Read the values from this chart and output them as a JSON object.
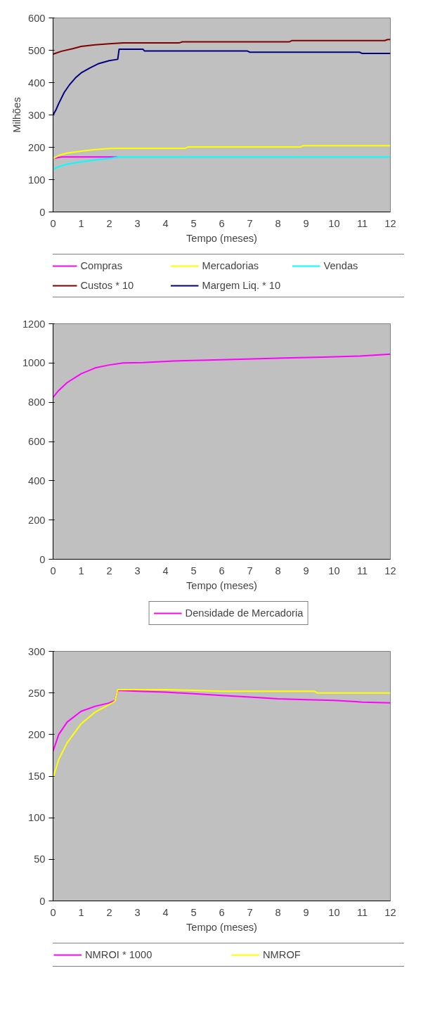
{
  "chart_data": [
    {
      "type": "line",
      "ylabel": "Milhões",
      "xlabel": "Tempo (meses)",
      "xlim": [
        0,
        12
      ],
      "xticks": [
        0,
        1,
        2,
        3,
        4,
        5,
        6,
        7,
        8,
        9,
        10,
        11,
        12
      ],
      "ylim": [
        0,
        600
      ],
      "yticks": [
        0,
        100,
        200,
        300,
        400,
        500,
        600
      ],
      "grid": false,
      "legend": "bottom",
      "marker": "none",
      "line_style": "solid",
      "series": [
        {
          "name": "Compras",
          "color": "#ff00ff",
          "x": [
            0,
            0.3,
            1,
            2.3
          ],
          "values": [
            165,
            170,
            170,
            170
          ]
        },
        {
          "name": "Mercadorias",
          "color": "#ffff00",
          "x": [
            0,
            0.2,
            0.5,
            1,
            1.5,
            2,
            2.3,
            4.7,
            4.8,
            8.8,
            8.9,
            12
          ],
          "values": [
            165,
            175,
            182,
            188,
            193,
            196,
            197,
            197,
            201,
            201,
            205,
            205
          ]
        },
        {
          "name": "Vendas",
          "color": "#00ffff",
          "x": [
            0,
            0.2,
            0.5,
            1,
            1.5,
            2,
            2.3,
            12
          ],
          "values": [
            132,
            140,
            148,
            155,
            161,
            165,
            170,
            170
          ]
        },
        {
          "name": "Custos * 10",
          "color": "#800000",
          "x": [
            0,
            0.3,
            0.7,
            1,
            1.5,
            2,
            2.5,
            4.5,
            4.6,
            8.4,
            8.5,
            11.8,
            11.9,
            12
          ],
          "values": [
            488,
            497,
            505,
            512,
            517,
            520,
            523,
            523,
            526,
            526,
            530,
            530,
            533,
            533
          ]
        },
        {
          "name": "Margem Liq. * 10",
          "color": "#000080",
          "x": [
            0,
            0.1,
            0.2,
            0.4,
            0.6,
            0.8,
            1,
            1.3,
            1.6,
            2,
            2.3,
            2.35,
            3.2,
            3.25,
            6.9,
            7,
            10.9,
            11,
            12
          ],
          "values": [
            300,
            315,
            335,
            370,
            395,
            415,
            430,
            445,
            458,
            468,
            472,
            503,
            503,
            498,
            498,
            494,
            494,
            490,
            490
          ]
        }
      ]
    },
    {
      "type": "line",
      "xlabel": "Tempo (meses)",
      "xlim": [
        0,
        12
      ],
      "xticks": [
        0,
        1,
        2,
        3,
        4,
        5,
        6,
        7,
        8,
        9,
        10,
        11,
        12
      ],
      "ylim": [
        0,
        1200
      ],
      "yticks": [
        0,
        200,
        400,
        600,
        800,
        1000,
        1200
      ],
      "grid": false,
      "legend": "bottom",
      "marker": "none",
      "line_style": "solid",
      "series": [
        {
          "name": "Densidade de Mercadoria",
          "color": "#ff00ff",
          "x": [
            0,
            0.2,
            0.5,
            1,
            1.5,
            2,
            2.5,
            3.2,
            4.3,
            5.5,
            6.9,
            8.2,
            9.6,
            10.9,
            12
          ],
          "values": [
            825,
            860,
            900,
            945,
            975,
            990,
            1000,
            1002,
            1010,
            1015,
            1020,
            1025,
            1030,
            1035,
            1045
          ]
        }
      ]
    },
    {
      "type": "line",
      "xlabel": "Tempo (meses)",
      "xlim": [
        0,
        12
      ],
      "xticks": [
        0,
        1,
        2,
        3,
        4,
        5,
        6,
        7,
        8,
        9,
        10,
        11,
        12
      ],
      "ylim": [
        0,
        300
      ],
      "yticks": [
        0,
        50,
        100,
        150,
        200,
        250,
        300
      ],
      "grid": false,
      "legend": "bottom",
      "marker": "none",
      "line_style": "solid",
      "series": [
        {
          "name": "NMROI * 1000",
          "color": "#ff00ff",
          "x": [
            0,
            0.2,
            0.5,
            1,
            1.5,
            2,
            2.2,
            2.3,
            3,
            4,
            5,
            6,
            7,
            8,
            9,
            10,
            11,
            12
          ],
          "values": [
            180,
            200,
            215,
            228,
            234,
            238,
            241,
            253,
            252,
            251,
            249,
            247,
            245,
            243,
            242,
            241,
            239,
            238
          ]
        },
        {
          "name": "NMROF",
          "color": "#ffff00",
          "x": [
            0,
            0.2,
            0.5,
            1,
            1.5,
            2,
            2.2,
            2.3,
            4,
            5,
            6,
            9.3,
            9.4,
            12
          ],
          "values": [
            148,
            170,
            190,
            213,
            227,
            236,
            240,
            254,
            254,
            253,
            252,
            252,
            250,
            250
          ]
        }
      ]
    }
  ]
}
